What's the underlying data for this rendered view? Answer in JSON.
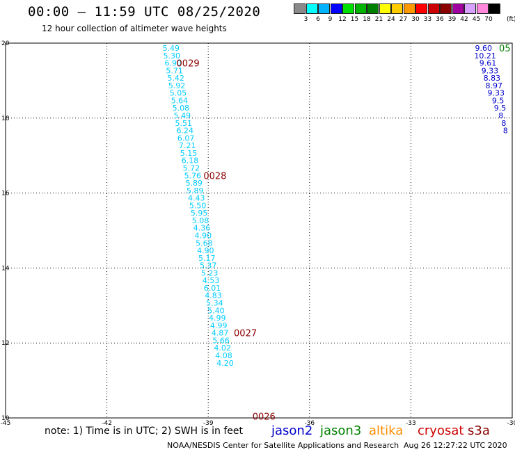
{
  "title": "00:00 – 11:59 UTC 08/25/2020",
  "subtitle": "12 hour collection of altimeter wave heights",
  "colorbar": {
    "colors": [
      "#8a8a8a",
      "#00ffff",
      "#00b4ff",
      "#0000ff",
      "#00e000",
      "#00b400",
      "#008000",
      "#ffff00",
      "#ffcc00",
      "#ff9900",
      "#ff0000",
      "#cc0000",
      "#8b0000",
      "#a000a0",
      "#d8a0ff",
      "#ff88dd",
      "#000000"
    ],
    "labels": [
      "3",
      "6",
      "9",
      "12",
      "15",
      "18",
      "21",
      "24",
      "27",
      "30",
      "33",
      "36",
      "39",
      "42",
      "45",
      "70"
    ],
    "unit": "(ft)"
  },
  "note": "note:  1) Time is in UTC;  2) SWH is in feet",
  "satellites": [
    {
      "name": "jason2",
      "color": "#0000cc"
    },
    {
      "name": "jason3",
      "color": "#008000"
    },
    {
      "name": "altika",
      "color": "#ff8c00"
    },
    {
      "name": "cryosat",
      "color": "#cc0000"
    },
    {
      "name": "s3a",
      "color": "#8b0000"
    }
  ],
  "footer_org": "NOAA/NESDIS Center for Satellite Applications and Research",
  "footer_time": "Aug 26 12:27:22 UTC 2020",
  "chart_data": {
    "type": "scatter",
    "xlim": [
      -45,
      -30
    ],
    "ylim": [
      10,
      20
    ],
    "xticks": [
      "-45",
      "-42",
      "-39",
      "-36",
      "-33",
      "-30"
    ],
    "yticks": [
      "10",
      "12",
      "14",
      "16",
      "18",
      "20"
    ],
    "grid": true,
    "track_main": {
      "color": "#00ccff",
      "points": [
        {
          "x": -40.1,
          "y": 19.87,
          "v": "5.49"
        },
        {
          "x": -40.08,
          "y": 19.67,
          "v": "5.30"
        },
        {
          "x": -40.04,
          "y": 19.47,
          "v": "6.90"
        },
        {
          "x": -40.0,
          "y": 19.27,
          "v": "5.71"
        },
        {
          "x": -39.96,
          "y": 19.07,
          "v": "5.42"
        },
        {
          "x": -39.93,
          "y": 18.87,
          "v": "5.92"
        },
        {
          "x": -39.89,
          "y": 18.67,
          "v": "5.05"
        },
        {
          "x": -39.85,
          "y": 18.47,
          "v": "5.64"
        },
        {
          "x": -39.81,
          "y": 18.27,
          "v": "5.08"
        },
        {
          "x": -39.77,
          "y": 18.07,
          "v": "5.49"
        },
        {
          "x": -39.73,
          "y": 17.87,
          "v": "5.51"
        },
        {
          "x": -39.69,
          "y": 17.67,
          "v": "6.24"
        },
        {
          "x": -39.66,
          "y": 17.47,
          "v": "6.07"
        },
        {
          "x": -39.62,
          "y": 17.27,
          "v": "7.21"
        },
        {
          "x": -39.58,
          "y": 17.07,
          "v": "5.15"
        },
        {
          "x": -39.54,
          "y": 16.87,
          "v": "6.18"
        },
        {
          "x": -39.5,
          "y": 16.67,
          "v": "5.72"
        },
        {
          "x": -39.46,
          "y": 16.47,
          "v": "5.76"
        },
        {
          "x": -39.42,
          "y": 16.27,
          "v": "5.89"
        },
        {
          "x": -39.39,
          "y": 16.07,
          "v": "5.89"
        },
        {
          "x": -39.35,
          "y": 15.87,
          "v": "4.43"
        },
        {
          "x": -39.31,
          "y": 15.67,
          "v": "5.50"
        },
        {
          "x": -39.27,
          "y": 15.47,
          "v": "5.95"
        },
        {
          "x": -39.23,
          "y": 15.27,
          "v": "5.08"
        },
        {
          "x": -39.19,
          "y": 15.07,
          "v": "4.36"
        },
        {
          "x": -39.15,
          "y": 14.87,
          "v": "4.90"
        },
        {
          "x": -39.12,
          "y": 14.67,
          "v": "5.68"
        },
        {
          "x": -39.08,
          "y": 14.47,
          "v": "4.90"
        },
        {
          "x": -39.04,
          "y": 14.27,
          "v": "5.17"
        },
        {
          "x": -39.0,
          "y": 14.07,
          "v": "5.37"
        },
        {
          "x": -38.96,
          "y": 13.87,
          "v": "5.23"
        },
        {
          "x": -38.92,
          "y": 13.67,
          "v": "4.53"
        },
        {
          "x": -38.88,
          "y": 13.47,
          "v": "6.01"
        },
        {
          "x": -38.85,
          "y": 13.27,
          "v": "4.83"
        },
        {
          "x": -38.81,
          "y": 13.07,
          "v": "5.34"
        },
        {
          "x": -38.77,
          "y": 12.87,
          "v": "5.40"
        },
        {
          "x": -38.73,
          "y": 12.67,
          "v": "4.99"
        },
        {
          "x": -38.69,
          "y": 12.47,
          "v": "4.99"
        },
        {
          "x": -38.65,
          "y": 12.27,
          "v": "4.87"
        },
        {
          "x": -38.62,
          "y": 12.07,
          "v": "5.66"
        },
        {
          "x": -38.58,
          "y": 11.87,
          "v": "4.02"
        },
        {
          "x": -38.54,
          "y": 11.67,
          "v": "4.08"
        },
        {
          "x": -38.5,
          "y": 11.47,
          "v": "4.20"
        }
      ]
    },
    "track_main_display": {
      "x_shift": 0,
      "labels_y": [
        19.87,
        19.67,
        19.47,
        19.27,
        19.07,
        18.87,
        18.67,
        18.47,
        18.27,
        18.07,
        17.87,
        17.67,
        17.47,
        17.27,
        17.07,
        16.87,
        16.67,
        16.47,
        16.27,
        16.07,
        15.87,
        15.67,
        15.47,
        15.27,
        15.07,
        14.87,
        14.67,
        14.47,
        14.27,
        14.07,
        13.87,
        13.67,
        13.47,
        13.27,
        13.07,
        12.87,
        12.67,
        12.47,
        12.27,
        12.07,
        11.87,
        11.67,
        11.47
      ]
    },
    "track_right": {
      "color": "#0000cc",
      "points": [
        {
          "x": -30.85,
          "y": 19.87,
          "v": "9.60"
        },
        {
          "x": -30.8,
          "y": 19.67,
          "v": "10.21"
        },
        {
          "x": -30.72,
          "y": 19.47,
          "v": "9.61"
        },
        {
          "x": -30.66,
          "y": 19.27,
          "v": "9.33"
        },
        {
          "x": -30.6,
          "y": 19.07,
          "v": "8.83"
        },
        {
          "x": -30.54,
          "y": 18.87,
          "v": "8.97"
        },
        {
          "x": -30.48,
          "y": 18.67,
          "v": "9.33"
        },
        {
          "x": -30.42,
          "y": 18.47,
          "v": "9.5"
        },
        {
          "x": -30.36,
          "y": 18.27,
          "v": "9.5"
        },
        {
          "x": -30.3,
          "y": 18.07,
          "v": "8."
        },
        {
          "x": -30.25,
          "y": 17.87,
          "v": "8"
        },
        {
          "x": -30.2,
          "y": 17.67,
          "v": "8"
        }
      ]
    },
    "time_labels": [
      {
        "x": -39.6,
        "y": 19.47,
        "text": "0029",
        "color": "#8b0000"
      },
      {
        "x": -38.8,
        "y": 16.47,
        "text": "0028",
        "color": "#8b0000"
      },
      {
        "x": -37.9,
        "y": 12.27,
        "text": "0027",
        "color": "#8b0000"
      },
      {
        "x": -37.35,
        "y": 10.05,
        "text": "0026",
        "color": "#8b0000"
      },
      {
        "x": -30.22,
        "y": 19.87,
        "text": "05",
        "color": "#008000"
      }
    ]
  }
}
